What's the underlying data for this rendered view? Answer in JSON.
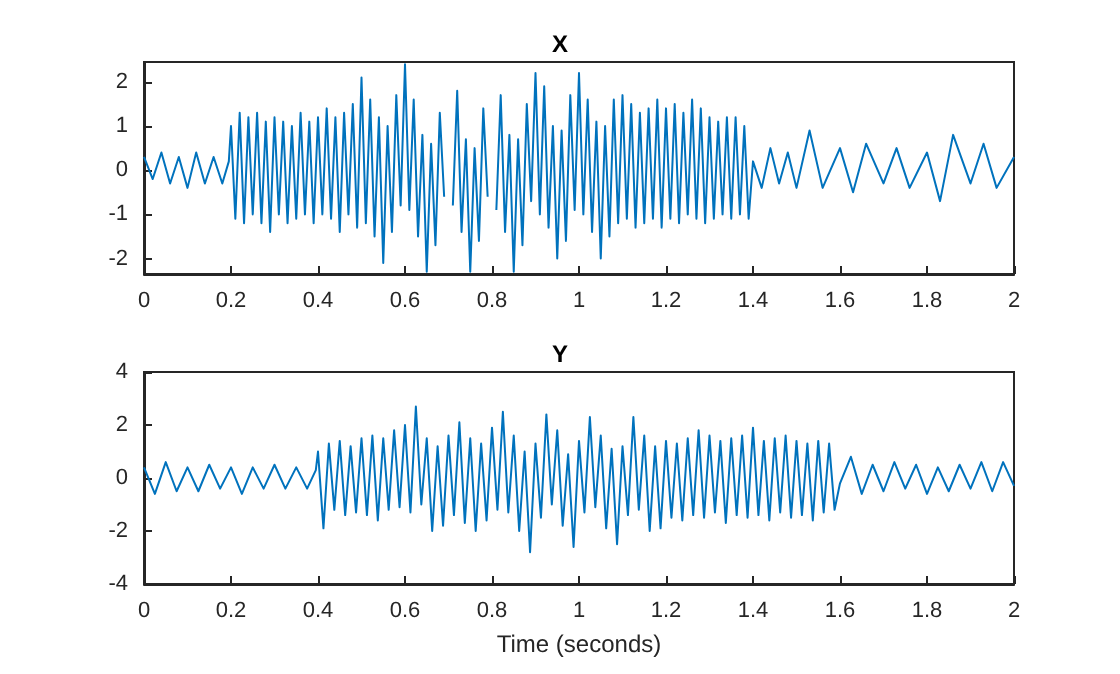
{
  "chart_data": [
    {
      "type": "line",
      "title": "X",
      "color": "#0072bd",
      "xlim": [
        0,
        2
      ],
      "xticks": [
        0,
        0.2,
        0.4,
        0.6,
        0.8,
        1,
        1.2,
        1.4,
        1.6,
        1.8,
        2
      ],
      "ylim": [
        -2.35,
        2.45
      ],
      "yticks": [
        -2,
        -1,
        0,
        1,
        2
      ],
      "x": [
        0,
        0.02,
        0.04,
        0.06,
        0.08,
        0.1,
        0.12,
        0.14,
        0.16,
        0.18,
        0.195,
        0.2,
        0.21,
        0.22,
        0.23,
        0.24,
        0.25,
        0.26,
        0.27,
        0.28,
        0.29,
        0.3,
        0.31,
        0.32,
        0.33,
        0.34,
        0.35,
        0.36,
        0.37,
        0.38,
        0.39,
        0.4,
        0.41,
        0.42,
        0.43,
        0.44,
        0.45,
        0.46,
        0.47,
        0.48,
        0.49,
        0.5,
        0.51,
        0.52,
        0.53,
        0.54,
        0.55,
        0.56,
        0.57,
        0.58,
        0.59,
        0.6,
        0.61,
        0.62,
        0.63,
        0.64,
        0.65,
        0.66,
        0.67,
        0.68,
        0.69,
        0.7,
        0.71,
        0.72,
        0.73,
        0.74,
        0.75,
        0.76,
        0.77,
        0.78,
        0.79,
        0.8,
        0.81,
        0.82,
        0.83,
        0.84,
        0.85,
        0.86,
        0.87,
        0.88,
        0.89,
        0.9,
        0.91,
        0.92,
        0.93,
        0.94,
        0.95,
        0.96,
        0.97,
        0.98,
        0.99,
        1,
        1.01,
        1.02,
        1.03,
        1.04,
        1.05,
        1.06,
        1.07,
        1.08,
        1.09,
        1.1,
        1.11,
        1.12,
        1.13,
        1.14,
        1.15,
        1.16,
        1.17,
        1.18,
        1.19,
        1.2,
        1.21,
        1.22,
        1.23,
        1.24,
        1.25,
        1.26,
        1.27,
        1.28,
        1.29,
        1.3,
        1.31,
        1.32,
        1.33,
        1.34,
        1.35,
        1.36,
        1.37,
        1.38,
        1.39,
        1.4,
        1.42,
        1.44,
        1.46,
        1.48,
        1.5,
        1.53,
        1.56,
        1.6,
        1.63,
        1.66,
        1.7,
        1.73,
        1.76,
        1.8,
        1.83,
        1.86,
        1.9,
        1.93,
        1.96,
        2
      ],
      "values": [
        0.3,
        -0.2,
        0.4,
        -0.3,
        0.3,
        -0.4,
        0.4,
        -0.3,
        0.3,
        -0.3,
        0.2,
        1.0,
        -1.1,
        1.3,
        -1.2,
        1.2,
        -1.0,
        1.3,
        -1.2,
        1.1,
        -1.4,
        1.2,
        -1.0,
        1.1,
        -1.2,
        1.0,
        -1.1,
        1.3,
        -1.0,
        1.1,
        -1.2,
        1.2,
        -1.0,
        1.4,
        -1.1,
        1.2,
        -1.4,
        1.3,
        -1.0,
        1.5,
        -1.3,
        2.1,
        -1.2,
        1.6,
        -1.5,
        1.2,
        -2.1,
        1.0,
        -1.4,
        1.7,
        -0.8,
        2.4,
        -0.9,
        1.6,
        -1.5,
        0.8,
        -2.3,
        0.6,
        -1.7,
        1.3,
        -0.6,
        null,
        -0.8,
        1.8,
        -1.4,
        0.7,
        -2.3,
        0.5,
        -1.6,
        1.4,
        -0.6,
        null,
        -0.9,
        1.7,
        -1.4,
        0.8,
        -2.3,
        0.7,
        -1.7,
        1.5,
        -0.7,
        2.2,
        -1.0,
        1.9,
        -1.3,
        1.0,
        -2.0,
        0.9,
        -1.6,
        1.7,
        -0.9,
        2.2,
        -1.0,
        1.6,
        -1.4,
        1.1,
        -2.0,
        1.0,
        -1.5,
        1.6,
        -1.2,
        1.7,
        -1.1,
        1.5,
        -1.3,
        1.3,
        -1.2,
        1.4,
        -1.1,
        1.6,
        -1.3,
        1.4,
        -1.1,
        1.5,
        -1.2,
        1.3,
        -1.0,
        1.6,
        -1.1,
        1.4,
        -1.2,
        1.2,
        -1.1,
        1.1,
        -1.0,
        1.2,
        -1.1,
        1.2,
        -1.0,
        1.0,
        -1.1,
        0.2,
        -0.4,
        0.5,
        -0.3,
        0.4,
        -0.4,
        0.9,
        -0.4,
        0.5,
        -0.5,
        0.6,
        -0.3,
        0.5,
        -0.4,
        0.4,
        -0.7,
        0.8,
        -0.3,
        0.6,
        -0.4,
        0.3
      ]
    },
    {
      "type": "line",
      "title": "Y",
      "xlabel": "Time (seconds)",
      "color": "#0072bd",
      "xlim": [
        0,
        2
      ],
      "xticks": [
        0,
        0.2,
        0.4,
        0.6,
        0.8,
        1,
        1.2,
        1.4,
        1.6,
        1.8,
        2
      ],
      "ylim": [
        -4,
        4
      ],
      "yticks": [
        -4,
        -2,
        0,
        2,
        4
      ],
      "x": [
        0,
        0.025,
        0.05,
        0.075,
        0.1,
        0.125,
        0.15,
        0.175,
        0.2,
        0.225,
        0.25,
        0.275,
        0.3,
        0.325,
        0.35,
        0.375,
        0.395,
        0.4,
        0.4125,
        0.425,
        0.4375,
        0.45,
        0.4625,
        0.475,
        0.4875,
        0.5,
        0.5125,
        0.525,
        0.5375,
        0.55,
        0.5625,
        0.575,
        0.5875,
        0.6,
        0.6125,
        0.625,
        0.6375,
        0.65,
        0.6625,
        0.675,
        0.6875,
        0.7,
        0.7125,
        0.725,
        0.7375,
        0.75,
        0.7625,
        0.775,
        0.7875,
        0.8,
        0.8125,
        0.825,
        0.8375,
        0.85,
        0.8625,
        0.875,
        0.8875,
        0.9,
        0.9125,
        0.925,
        0.9375,
        0.95,
        0.9625,
        0.975,
        0.9875,
        1,
        1.0125,
        1.025,
        1.0375,
        1.05,
        1.0625,
        1.075,
        1.0875,
        1.1,
        1.1125,
        1.125,
        1.1375,
        1.15,
        1.1625,
        1.175,
        1.1875,
        1.2,
        1.2125,
        1.225,
        1.2375,
        1.25,
        1.2625,
        1.275,
        1.2875,
        1.3,
        1.3125,
        1.325,
        1.3375,
        1.35,
        1.3625,
        1.375,
        1.3875,
        1.4,
        1.4125,
        1.425,
        1.4375,
        1.45,
        1.4625,
        1.475,
        1.4875,
        1.5,
        1.5125,
        1.525,
        1.5375,
        1.55,
        1.5625,
        1.575,
        1.5875,
        1.6,
        1.625,
        1.65,
        1.675,
        1.7,
        1.725,
        1.75,
        1.775,
        1.8,
        1.825,
        1.85,
        1.875,
        1.9,
        1.925,
        1.95,
        1.975,
        2
      ],
      "values": [
        0.4,
        -0.6,
        0.6,
        -0.5,
        0.4,
        -0.5,
        0.5,
        -0.4,
        0.4,
        -0.6,
        0.4,
        -0.4,
        0.5,
        -0.4,
        0.4,
        -0.4,
        0.3,
        1.0,
        -1.9,
        1.3,
        -1.2,
        1.4,
        -1.4,
        1.2,
        -1.3,
        1.5,
        -1.4,
        1.6,
        -1.6,
        1.5,
        -1.2,
        1.8,
        -1.1,
        2.0,
        -1.3,
        2.7,
        -1.0,
        1.5,
        -2.0,
        1.2,
        -1.8,
        1.6,
        -1.4,
        2.1,
        -1.7,
        1.5,
        -2.0,
        1.3,
        -1.6,
        1.9,
        -1.2,
        2.5,
        -1.3,
        1.6,
        -2.0,
        1.0,
        -2.8,
        1.3,
        -1.5,
        2.4,
        -1.0,
        1.8,
        -1.8,
        0.9,
        -2.6,
        1.4,
        -1.3,
        2.3,
        -1.1,
        1.6,
        -1.9,
        1.1,
        -2.5,
        1.2,
        -1.4,
        2.3,
        -1.2,
        1.6,
        -2.0,
        1.2,
        -1.9,
        1.4,
        -1.5,
        1.3,
        -1.6,
        1.5,
        -1.4,
        1.8,
        -1.5,
        1.6,
        -1.3,
        1.4,
        -1.7,
        1.5,
        -1.4,
        1.6,
        -1.5,
        1.9,
        -1.4,
        1.4,
        -1.6,
        1.5,
        -1.3,
        1.6,
        -1.5,
        1.4,
        -1.4,
        1.3,
        -1.6,
        1.4,
        -1.3,
        1.3,
        -1.2,
        -0.2,
        0.8,
        -0.6,
        0.5,
        -0.5,
        0.6,
        -0.4,
        0.5,
        -0.6,
        0.4,
        -0.5,
        0.5,
        -0.4,
        0.6,
        -0.5,
        0.6,
        -0.3
      ]
    }
  ]
}
